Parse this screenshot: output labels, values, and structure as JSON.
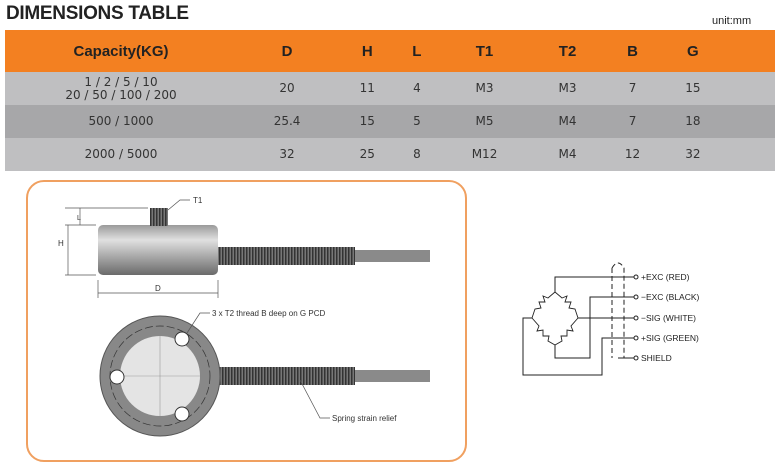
{
  "title": "DIMENSIONS TABLE",
  "unit": "unit:mm",
  "table": {
    "headers": [
      "Capacity(KG)",
      "D",
      "H",
      "L",
      "T1",
      "T2",
      "B",
      "G"
    ],
    "rows": [
      [
        "1 / 2 / 5 / 10\n20 / 50 / 100 / 200",
        "20",
        "11",
        "4",
        "M3",
        "M3",
        "7",
        "15"
      ],
      [
        "500 / 1000",
        "25.4",
        "15",
        "5",
        "M5",
        "M4",
        "7",
        "18"
      ],
      [
        "2000 / 5000",
        "32",
        "25",
        "8",
        "M12",
        "M4",
        "12",
        "32"
      ]
    ]
  },
  "drawing": {
    "labels": {
      "t1": "T1",
      "l": "L",
      "h": "H",
      "d": "D",
      "thread": "3 x T2 thread B deep on G PCD",
      "strain": "Spring strain relief"
    }
  },
  "wiring": {
    "terminals": [
      "+EXC (RED)",
      "−EXC (BLACK)",
      "−SIG  (WHITE)",
      "+SIG  (GREEN)",
      "SHIELD"
    ]
  },
  "colors": {
    "header": "#f38021",
    "row_light": "#bfbfc1",
    "row_dark": "#a7a7a9",
    "frame": "#f0a060"
  }
}
